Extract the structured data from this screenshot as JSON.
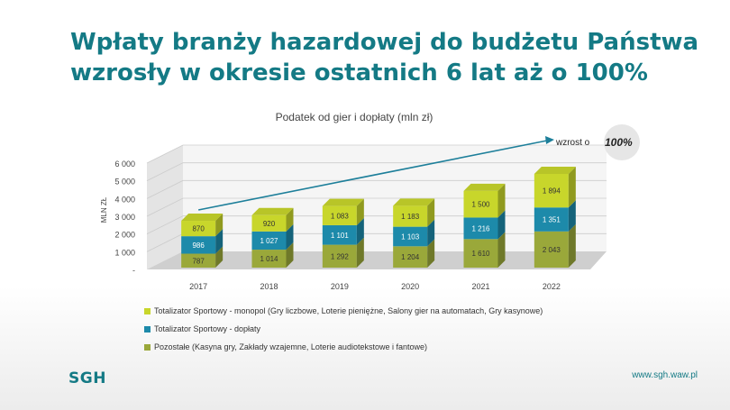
{
  "slide": {
    "title_line1": "Wpłaty branży hazardowej do budżetu Państwa",
    "title_line2": "wzrosły w okresie ostatnich 6 lat aż o 100%",
    "logo_text": "SGH",
    "url": "www.sgh.waw.pl"
  },
  "chart_data": {
    "type": "bar",
    "stacked": true,
    "three_d": true,
    "title": "Podatek od gier i dopłaty (mln zł)",
    "ylabel": "MLN ZŁ",
    "xlabel": "",
    "ylim": [
      0,
      6000
    ],
    "yticks": [
      0,
      1000,
      2000,
      3000,
      4000,
      5000,
      6000
    ],
    "ytick_labels": [
      "-",
      "1 000",
      "2 000",
      "3 000",
      "4 000",
      "5 000",
      "6 000"
    ],
    "grid": true,
    "legend_position": "bottom",
    "categories": [
      "2017",
      "2018",
      "2019",
      "2020",
      "2021",
      "2022"
    ],
    "series": [
      {
        "name": "Pozostałe (Kasyna gry, Zakłady wzajemne, Loterie audiotekstowe i fantowe)",
        "values": [
          787,
          1014,
          1292,
          1204,
          1610,
          2043
        ],
        "labels": [
          "787",
          "1 014",
          "1 292",
          "1 204",
          "1 610",
          "2 043"
        ],
        "color": "#9aa83a"
      },
      {
        "name": "Totalizator Sportowy - dopłaty",
        "values": [
          986,
          1027,
          1101,
          1103,
          1216,
          1351
        ],
        "labels": [
          "986",
          "1 027",
          "1 101",
          "1 103",
          "1 216",
          "1 351"
        ],
        "color": "#1d8aaa"
      },
      {
        "name": "Totalizator Sportowy - monopol (Gry liczbowe, Loterie pieniężne, Salony gier na automatach, Gry kasynowe)",
        "values": [
          870,
          920,
          1083,
          1183,
          1500,
          1894
        ],
        "labels": [
          "870",
          "920",
          "1 083",
          "1 183",
          "1 500",
          "1 894"
        ],
        "color": "#c8d62b"
      }
    ],
    "legend_order": [
      2,
      1,
      0
    ],
    "annotation": {
      "text": "wzrost o",
      "highlight": "100%",
      "arrow_color": "#1d7f9a"
    }
  }
}
